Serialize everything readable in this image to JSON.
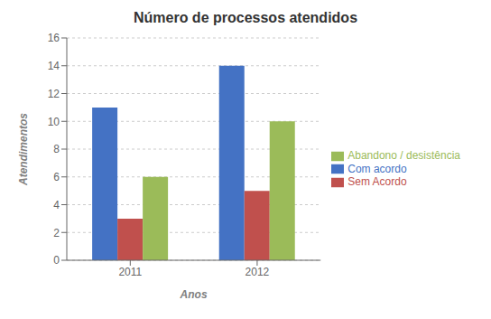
{
  "chart_data": {
    "type": "bar",
    "title": "Número de processos atendidos",
    "xlabel": "Anos",
    "ylabel": "Atendimentos",
    "categories": [
      "2011",
      "2012"
    ],
    "series": [
      {
        "name": "Com acordo",
        "color": "#4472C4",
        "values": [
          11,
          14
        ]
      },
      {
        "name": "Sem Acordo",
        "color": "#C0504D",
        "values": [
          3,
          5
        ]
      },
      {
        "name": "Abandono / desistência",
        "color": "#9BBB59",
        "values": [
          6,
          10
        ]
      }
    ],
    "ylim": [
      0,
      16
    ],
    "yticks": [
      0,
      2,
      4,
      6,
      8,
      10,
      12,
      14,
      16
    ],
    "grid": true,
    "legend": "right"
  }
}
